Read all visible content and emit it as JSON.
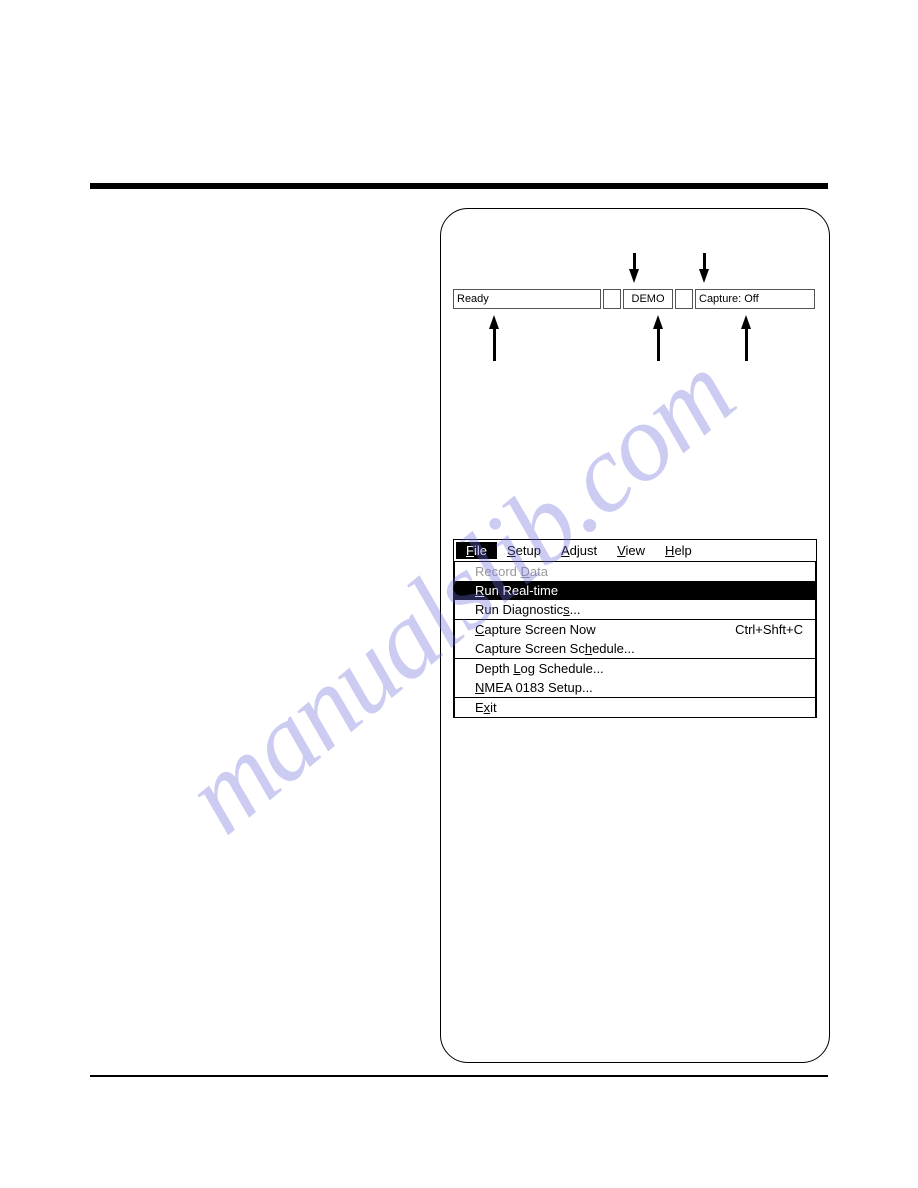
{
  "watermark": "manualslib.com",
  "statusbar": {
    "ready": "Ready",
    "demo": "DEMO",
    "capture": "Capture: Off"
  },
  "menubar": {
    "file": {
      "pre": "",
      "u": "F",
      "post": "ile"
    },
    "setup": {
      "pre": "",
      "u": "S",
      "post": "etup"
    },
    "adjust": {
      "pre": "",
      "u": "A",
      "post": "djust"
    },
    "view": {
      "pre": "",
      "u": "V",
      "post": "iew"
    },
    "help": {
      "pre": "",
      "u": "H",
      "post": "elp"
    }
  },
  "dropdown": {
    "record": {
      "pre": "Record ",
      "u": "D",
      "post": "ata"
    },
    "realtime": {
      "pre": "",
      "u": "R",
      "post": "un Real-time"
    },
    "diag": {
      "pre": "Run Diagnostic",
      "u": "s",
      "post": "..."
    },
    "capnow": {
      "pre": "",
      "u": "C",
      "post": "apture Screen Now"
    },
    "capnow_sc": "Ctrl+Shft+C",
    "capsched": {
      "pre": "Capture Screen Sc",
      "u": "h",
      "post": "edule..."
    },
    "depthlog": {
      "pre": "Depth ",
      "u": "L",
      "post": "og Schedule..."
    },
    "nmea": {
      "pre": "",
      "u": "N",
      "post": "MEA 0183 Setup..."
    },
    "exit": {
      "pre": "E",
      "u": "x",
      "post": "it"
    }
  },
  "colors": {
    "watermark": "rgba(110,110,220,0.35)",
    "rule": "#000000",
    "highlight_bg": "#000000",
    "highlight_fg": "#ffffff",
    "disabled": "#999999"
  }
}
